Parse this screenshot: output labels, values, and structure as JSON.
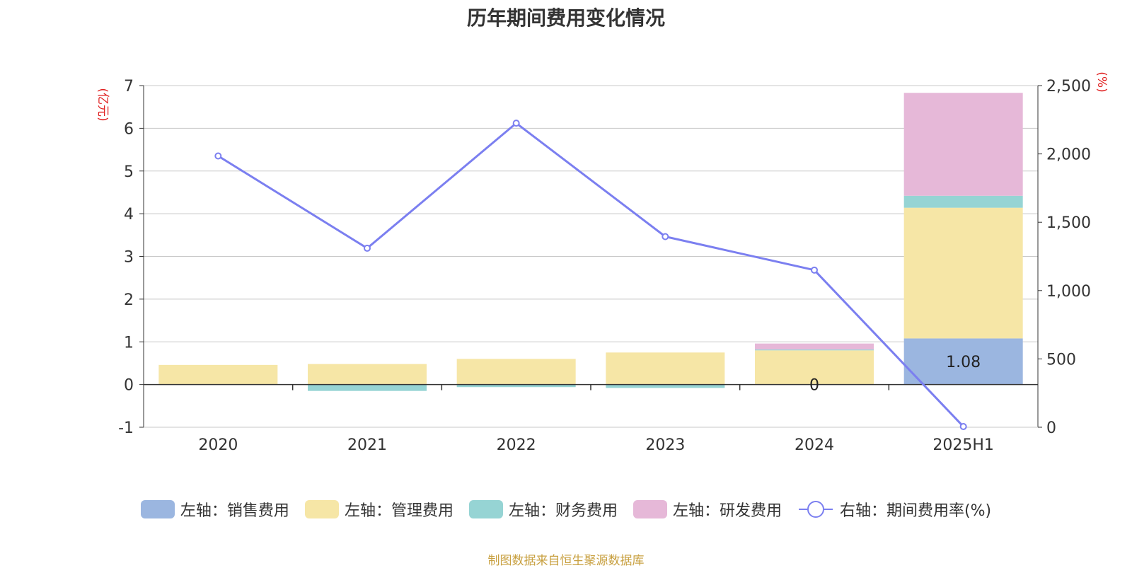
{
  "title": "历年期间费用变化情况",
  "footer": "制图数据来自恒生聚源数据库",
  "chart_data": {
    "type": "bar",
    "stacked": true,
    "categories": [
      "2020",
      "2021",
      "2022",
      "2023",
      "2024",
      "2025H1"
    ],
    "left_axis": {
      "label": "(亿元)",
      "ticks": [
        "7",
        "6",
        "5",
        "4",
        "3",
        "2",
        "1",
        "0",
        "-1"
      ],
      "range": [
        -1,
        7
      ]
    },
    "right_axis": {
      "label": "(%)",
      "ticks": [
        "2,500",
        "2,000",
        "1,500",
        "1,000",
        "500",
        "0"
      ],
      "range": [
        0,
        2500
      ]
    },
    "series": [
      {
        "name": "左轴：销售费用",
        "color": "#9bb6e0",
        "values": [
          0,
          0,
          0,
          0,
          0,
          1.08
        ]
      },
      {
        "name": "左轴：管理费用",
        "color": "#f6e6a6",
        "values": [
          0.46,
          0.48,
          0.6,
          0.75,
          0.8,
          3.06
        ]
      },
      {
        "name": "左轴：财务费用",
        "color": "#96d4d4",
        "values": [
          0,
          -0.15,
          -0.06,
          -0.08,
          0.02,
          0.28
        ]
      },
      {
        "name": "左轴：研发费用",
        "color": "#e6b8d8",
        "values": [
          0,
          0,
          0,
          0,
          0.14,
          2.41
        ]
      }
    ],
    "line_series": {
      "name": "右轴：期间费用率(%)",
      "color": "#7b7ff0",
      "axis": "right",
      "values": [
        1985,
        1310,
        2225,
        1395,
        1150,
        5
      ]
    },
    "data_labels": [
      {
        "category": "2024",
        "series": "左轴：销售费用",
        "text": "0"
      },
      {
        "category": "2025H1",
        "series": "左轴：销售费用",
        "text": "1.08"
      }
    ],
    "grid": true,
    "legend_position": "bottom"
  }
}
